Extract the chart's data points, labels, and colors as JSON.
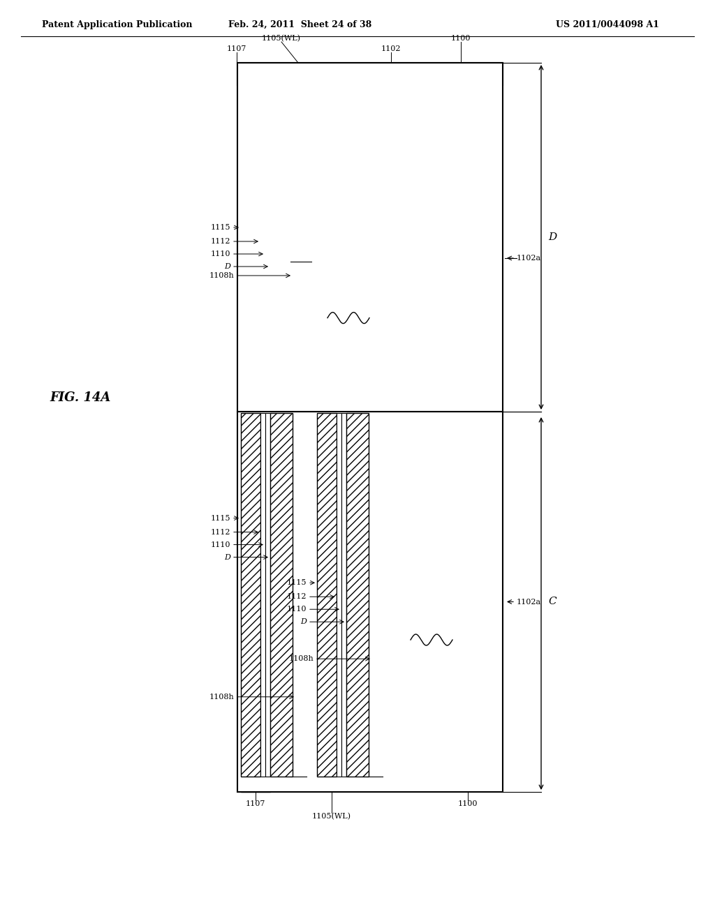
{
  "title_left": "Patent Application Publication",
  "title_mid": "Feb. 24, 2011  Sheet 24 of 38",
  "title_right": "US 2011/0044098 A1",
  "fig_label": "FIG. 14A",
  "bg_color": "#ffffff",
  "line_color": "#000000",
  "hatch_color": "#000000",
  "label_fontsize": 9,
  "header_fontsize": 9
}
